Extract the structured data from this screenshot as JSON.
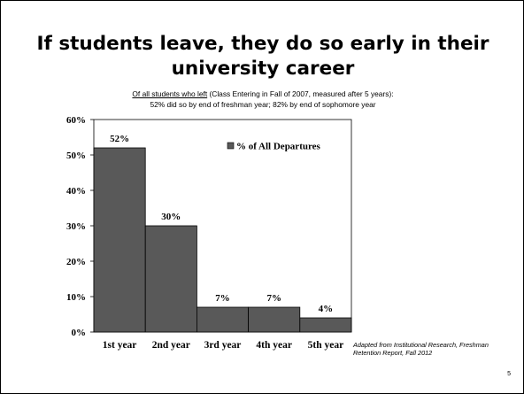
{
  "slide": {
    "title": "If students leave, they do so early in their university career",
    "subtitle_underlined": "Of all students who left",
    "subtitle_rest": " (Class Entering in Fall of 2007, measured after 5 years):",
    "subtitle_line2": "52% did so by end of freshman year; 82% by end of sophomore year",
    "source": "Adapted from Institutional Research, Freshman Retention Report, Fall 2012",
    "page_number": "5"
  },
  "chart_data": {
    "type": "bar",
    "title": "",
    "xlabel": "",
    "ylabel": "",
    "categories": [
      "1st year",
      "2nd year",
      "3rd year",
      "4th year",
      "5th year"
    ],
    "series": [
      {
        "name": "% of All Departures",
        "values": [
          52,
          30,
          7,
          7,
          4
        ],
        "labels": [
          "52%",
          "30%",
          "7%",
          "7%",
          "4%"
        ],
        "color": "#595959"
      }
    ],
    "ylim": [
      0,
      60
    ],
    "yticks": [
      0,
      10,
      20,
      30,
      40,
      50,
      60
    ],
    "ytick_labels": [
      "0%",
      "10%",
      "20%",
      "30%",
      "40%",
      "50%",
      "60%"
    ],
    "grid": false,
    "legend_position": "top-right",
    "bar_gap": "none"
  }
}
